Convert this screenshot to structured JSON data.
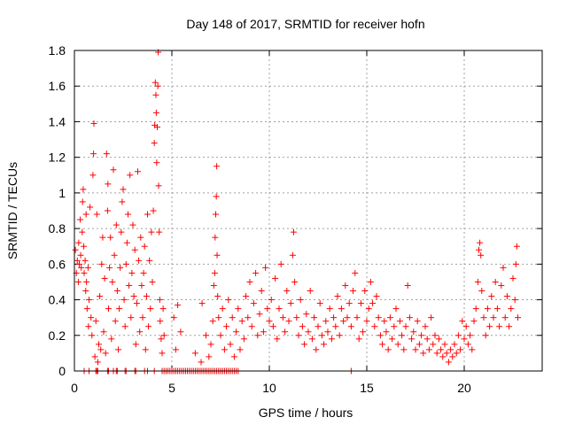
{
  "chart_data": {
    "type": "scatter",
    "title": "Day 148 of 2017, SRMTID for receiver hofn",
    "xlabel": "GPS time / hours",
    "ylabel": "SRMTID / TECUs",
    "xlim": [
      0,
      24
    ],
    "ylim": [
      0,
      1.8
    ],
    "xticks": [
      0,
      5,
      10,
      15,
      20
    ],
    "xtick_labels": [
      "0",
      "5",
      "10",
      "15",
      "20"
    ],
    "yticks": [
      0,
      0.2,
      0.4,
      0.6,
      0.8,
      1,
      1.2,
      1.4,
      1.6,
      1.8
    ],
    "ytick_labels": [
      "0",
      "0.2",
      "0.4",
      "0.6",
      "0.8",
      "1",
      "1.2",
      "1.4",
      "1.6",
      "1.8"
    ],
    "grid": true,
    "marker": "+",
    "color": "#ff0000",
    "series": [
      {
        "name": "SRMTID",
        "points": [
          [
            0.05,
            0.68
          ],
          [
            0.1,
            0.55
          ],
          [
            0.15,
            0.62
          ],
          [
            0.2,
            0.5
          ],
          [
            0.22,
            0.72
          ],
          [
            0.25,
            0.6
          ],
          [
            0.3,
            0.85
          ],
          [
            0.32,
            0.65
          ],
          [
            0.35,
            0.58
          ],
          [
            0.4,
            0.78
          ],
          [
            0.42,
            0.95
          ],
          [
            0.45,
            1.02
          ],
          [
            0.48,
            0.7
          ],
          [
            0.5,
            0.55
          ],
          [
            0.55,
            0.62
          ],
          [
            0.58,
            0.45
          ],
          [
            0.6,
            0.88
          ],
          [
            0.62,
            0.5
          ],
          [
            0.65,
            0.35
          ],
          [
            0.7,
            0.58
          ],
          [
            0.72,
            0.25
          ],
          [
            0.75,
            0.4
          ],
          [
            0.8,
            0.92
          ],
          [
            0.85,
            0.3
          ],
          [
            0.9,
            0.2
          ],
          [
            0.95,
            1.1
          ],
          [
            0.98,
            1.22
          ],
          [
            1.0,
            1.39
          ],
          [
            1.05,
            0.08
          ],
          [
            1.1,
            0.28
          ],
          [
            1.15,
            0.88
          ],
          [
            1.2,
            0.05
          ],
          [
            1.25,
            0.15
          ],
          [
            1.3,
            0.42
          ],
          [
            1.35,
            0.12
          ],
          [
            1.4,
            0.6
          ],
          [
            1.45,
            0.75
          ],
          [
            1.5,
            0.22
          ],
          [
            1.55,
            0.52
          ],
          [
            1.6,
            0.1
          ],
          [
            1.65,
            1.22
          ],
          [
            1.7,
            0.9
          ],
          [
            1.72,
            1.05
          ],
          [
            1.75,
            0.35
          ],
          [
            1.8,
            0.58
          ],
          [
            1.85,
            0.75
          ],
          [
            1.9,
            0.18
          ],
          [
            1.95,
            0.5
          ],
          [
            2.0,
            1.13
          ],
          [
            2.05,
            0.65
          ],
          [
            2.1,
            0.28
          ],
          [
            2.15,
            0.82
          ],
          [
            2.2,
            0.45
          ],
          [
            2.25,
            0.12
          ],
          [
            2.3,
            0.35
          ],
          [
            2.35,
            0.58
          ],
          [
            2.4,
            0.78
          ],
          [
            2.45,
            0.95
          ],
          [
            2.5,
            1.02
          ],
          [
            2.55,
            0.4
          ],
          [
            2.6,
            0.25
          ],
          [
            2.65,
            0.6
          ],
          [
            2.7,
            0.72
          ],
          [
            2.75,
            0.88
          ],
          [
            2.8,
            0.48
          ],
          [
            2.85,
            1.1
          ],
          [
            2.9,
            0.3
          ],
          [
            2.95,
            0.55
          ],
          [
            3.0,
            0.82
          ],
          [
            3.05,
            0.42
          ],
          [
            3.1,
            0.68
          ],
          [
            3.15,
            0.15
          ],
          [
            3.2,
            0.38
          ],
          [
            3.25,
            1.12
          ],
          [
            3.3,
            0.62
          ],
          [
            3.35,
            0.22
          ],
          [
            3.4,
            0.75
          ],
          [
            3.45,
            0.48
          ],
          [
            3.5,
            0.3
          ],
          [
            3.55,
            0.55
          ],
          [
            3.6,
            0.7
          ],
          [
            3.65,
            0.12
          ],
          [
            3.7,
            0.42
          ],
          [
            3.75,
            0.88
          ],
          [
            3.8,
            0.25
          ],
          [
            3.85,
            0.62
          ],
          [
            3.9,
            0.35
          ],
          [
            3.95,
            0.78
          ],
          [
            4.0,
            0.5
          ],
          [
            4.05,
            0.9
          ],
          [
            4.1,
            1.28
          ],
          [
            4.12,
            1.38
          ],
          [
            4.15,
            1.62
          ],
          [
            4.18,
            1.55
          ],
          [
            4.2,
            1.45
          ],
          [
            4.22,
            1.17
          ],
          [
            4.25,
            1.37
          ],
          [
            4.28,
            1.6
          ],
          [
            4.3,
            1.79
          ],
          [
            4.32,
            1.04
          ],
          [
            4.35,
            0.78
          ],
          [
            4.38,
            0.4
          ],
          [
            4.4,
            0.28
          ],
          [
            4.45,
            0.18
          ],
          [
            4.5,
            0.1
          ],
          [
            4.55,
            0.35
          ],
          [
            4.6,
            0.2
          ],
          [
            5.1,
            0.3
          ],
          [
            5.2,
            0.12
          ],
          [
            5.3,
            0.37
          ],
          [
            5.45,
            0.22
          ],
          [
            6.2,
            0.1
          ],
          [
            6.5,
            0.05
          ],
          [
            6.55,
            0.38
          ],
          [
            6.75,
            0.2
          ],
          [
            6.9,
            0.08
          ],
          [
            7.0,
            0.15
          ],
          [
            7.1,
            0.28
          ],
          [
            7.15,
            0.48
          ],
          [
            7.2,
            0.55
          ],
          [
            7.22,
            0.75
          ],
          [
            7.25,
            0.88
          ],
          [
            7.28,
            0.98
          ],
          [
            7.3,
            1.15
          ],
          [
            7.32,
            0.65
          ],
          [
            7.35,
            0.42
          ],
          [
            7.4,
            0.3
          ],
          [
            7.5,
            0.2
          ],
          [
            7.6,
            0.35
          ],
          [
            7.7,
            0.12
          ],
          [
            7.8,
            0.25
          ],
          [
            7.9,
            0.4
          ],
          [
            8.0,
            0.15
          ],
          [
            8.1,
            0.3
          ],
          [
            8.2,
            0.08
          ],
          [
            8.3,
            0.22
          ],
          [
            8.4,
            0.35
          ],
          [
            8.5,
            0.12
          ],
          [
            8.6,
            0.28
          ],
          [
            8.7,
            0.18
          ],
          [
            8.8,
            0.42
          ],
          [
            8.9,
            0.3
          ],
          [
            9.0,
            0.5
          ],
          [
            9.1,
            0.25
          ],
          [
            9.2,
            0.38
          ],
          [
            9.3,
            0.55
          ],
          [
            9.4,
            0.2
          ],
          [
            9.5,
            0.32
          ],
          [
            9.6,
            0.45
          ],
          [
            9.7,
            0.22
          ],
          [
            9.8,
            0.58
          ],
          [
            9.9,
            0.35
          ],
          [
            10.0,
            0.28
          ],
          [
            10.1,
            0.4
          ],
          [
            10.2,
            0.25
          ],
          [
            10.3,
            0.52
          ],
          [
            10.4,
            0.18
          ],
          [
            10.5,
            0.35
          ],
          [
            10.6,
            0.6
          ],
          [
            10.7,
            0.3
          ],
          [
            10.8,
            0.22
          ],
          [
            10.9,
            0.45
          ],
          [
            11.0,
            0.28
          ],
          [
            11.1,
            0.38
          ],
          [
            11.2,
            0.65
          ],
          [
            11.25,
            0.78
          ],
          [
            11.3,
            0.5
          ],
          [
            11.4,
            0.3
          ],
          [
            11.5,
            0.2
          ],
          [
            11.6,
            0.4
          ],
          [
            11.7,
            0.25
          ],
          [
            11.8,
            0.15
          ],
          [
            11.9,
            0.32
          ],
          [
            12.0,
            0.22
          ],
          [
            12.1,
            0.45
          ],
          [
            12.2,
            0.18
          ],
          [
            12.3,
            0.3
          ],
          [
            12.4,
            0.12
          ],
          [
            12.5,
            0.25
          ],
          [
            12.6,
            0.38
          ],
          [
            12.7,
            0.2
          ],
          [
            12.8,
            0.15
          ],
          [
            12.9,
            0.28
          ],
          [
            13.0,
            0.22
          ],
          [
            13.1,
            0.35
          ],
          [
            13.2,
            0.18
          ],
          [
            13.3,
            0.3
          ],
          [
            13.4,
            0.25
          ],
          [
            13.5,
            0.42
          ],
          [
            13.6,
            0.2
          ],
          [
            13.7,
            0.35
          ],
          [
            13.8,
            0.28
          ],
          [
            13.9,
            0.48
          ],
          [
            14.0,
            0.3
          ],
          [
            14.1,
            0.38
          ],
          [
            14.2,
            0.25
          ],
          [
            14.3,
            0.45
          ],
          [
            14.4,
            0.55
          ],
          [
            14.5,
            0.3
          ],
          [
            14.6,
            0.18
          ],
          [
            14.7,
            0.38
          ],
          [
            14.8,
            0.22
          ],
          [
            14.9,
            0.45
          ],
          [
            15.0,
            0.28
          ],
          [
            15.1,
            0.35
          ],
          [
            15.2,
            0.5
          ],
          [
            15.3,
            0.38
          ],
          [
            15.4,
            0.25
          ],
          [
            15.5,
            0.42
          ],
          [
            15.6,
            0.3
          ],
          [
            15.7,
            0.2
          ],
          [
            15.8,
            0.15
          ],
          [
            15.9,
            0.28
          ],
          [
            16.0,
            0.22
          ],
          [
            16.1,
            0.12
          ],
          [
            16.2,
            0.3
          ],
          [
            16.3,
            0.18
          ],
          [
            16.4,
            0.25
          ],
          [
            16.5,
            0.35
          ],
          [
            16.6,
            0.15
          ],
          [
            16.7,
            0.28
          ],
          [
            16.8,
            0.2
          ],
          [
            16.9,
            0.12
          ],
          [
            17.0,
            0.25
          ],
          [
            17.1,
            0.48
          ],
          [
            17.2,
            0.3
          ],
          [
            17.3,
            0.18
          ],
          [
            17.4,
            0.22
          ],
          [
            17.5,
            0.12
          ],
          [
            17.6,
            0.28
          ],
          [
            17.7,
            0.15
          ],
          [
            17.8,
            0.2
          ],
          [
            17.9,
            0.1
          ],
          [
            18.0,
            0.25
          ],
          [
            18.1,
            0.18
          ],
          [
            18.2,
            0.12
          ],
          [
            18.3,
            0.3
          ],
          [
            18.4,
            0.15
          ],
          [
            18.5,
            0.2
          ],
          [
            18.6,
            0.1
          ],
          [
            18.7,
            0.18
          ],
          [
            18.8,
            0.12
          ],
          [
            18.9,
            0.08
          ],
          [
            19.0,
            0.15
          ],
          [
            19.1,
            0.1
          ],
          [
            19.2,
            0.05
          ],
          [
            19.3,
            0.12
          ],
          [
            19.4,
            0.08
          ],
          [
            19.5,
            0.15
          ],
          [
            19.6,
            0.1
          ],
          [
            19.7,
            0.2
          ],
          [
            19.8,
            0.12
          ],
          [
            19.9,
            0.28
          ],
          [
            20.0,
            0.18
          ],
          [
            20.1,
            0.25
          ],
          [
            20.2,
            0.15
          ],
          [
            20.3,
            0.2
          ],
          [
            20.4,
            0.12
          ],
          [
            20.5,
            0.28
          ],
          [
            20.6,
            0.35
          ],
          [
            20.7,
            0.5
          ],
          [
            20.75,
            0.68
          ],
          [
            20.8,
            0.72
          ],
          [
            20.85,
            0.65
          ],
          [
            20.9,
            0.45
          ],
          [
            21.0,
            0.3
          ],
          [
            21.1,
            0.2
          ],
          [
            21.2,
            0.35
          ],
          [
            21.3,
            0.25
          ],
          [
            21.4,
            0.42
          ],
          [
            21.5,
            0.3
          ],
          [
            21.6,
            0.5
          ],
          [
            21.7,
            0.35
          ],
          [
            21.8,
            0.25
          ],
          [
            21.9,
            0.48
          ],
          [
            22.0,
            0.58
          ],
          [
            22.1,
            0.3
          ],
          [
            22.2,
            0.42
          ],
          [
            22.3,
            0.25
          ],
          [
            22.4,
            0.35
          ],
          [
            22.5,
            0.52
          ],
          [
            22.6,
            0.4
          ],
          [
            22.65,
            0.6
          ],
          [
            22.7,
            0.7
          ],
          [
            22.75,
            0.3
          ]
        ],
        "zeros": [
          0.5,
          0.75,
          1.1,
          1.15,
          1.2,
          1.7,
          1.75,
          2.0,
          2.15,
          2.2,
          2.6,
          2.65,
          3.1,
          3.15,
          3.6,
          3.75,
          4.1,
          4.5,
          4.6,
          4.7,
          4.8,
          4.9,
          5.0,
          5.1,
          5.2,
          5.3,
          5.4,
          5.5,
          5.6,
          5.7,
          5.8,
          5.9,
          6.0,
          6.1,
          6.2,
          6.3,
          6.4,
          6.5,
          6.6,
          6.7,
          6.8,
          6.9,
          7.0,
          7.1,
          7.2,
          7.3,
          7.4,
          7.5,
          7.6,
          7.7,
          7.8,
          7.9,
          8.0,
          8.1,
          8.2,
          8.3,
          8.4,
          14.2
        ]
      }
    ]
  }
}
